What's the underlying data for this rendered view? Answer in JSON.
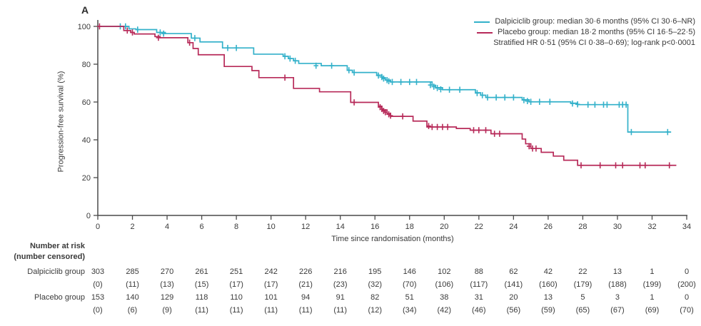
{
  "panel_label": "A",
  "colors": {
    "dalpiciclib": "#33b1ca",
    "placebo": "#b72a59",
    "axis": "#4a4a4a",
    "text": "#3a3a3a"
  },
  "legend": {
    "items": [
      {
        "label": "Dalpiciclib group: median 30·6 months (95% CI 30·6–NR)",
        "color": "#33b1ca"
      },
      {
        "label": "Placebo group: median 18·2 months (95% CI 16·5–22·5)",
        "color": "#b72a59"
      }
    ],
    "note": "Stratified HR 0·51 (95% CI 0·38–0·69); log-rank p<0·0001"
  },
  "chart_data": {
    "type": "line",
    "subtype": "kaplan_meier_step",
    "title": "",
    "xlabel": "Time since randomisation (months)",
    "ylabel": "Progression-free survival (%)",
    "xlim": [
      0,
      34
    ],
    "ylim": [
      0,
      100
    ],
    "xticks": [
      0,
      2,
      4,
      6,
      8,
      10,
      12,
      14,
      16,
      18,
      20,
      22,
      24,
      26,
      28,
      30,
      32,
      34
    ],
    "yticks": [
      0,
      20,
      40,
      60,
      80,
      100
    ],
    "grid": false,
    "legend_position": "top-right",
    "series": [
      {
        "name": "Dalpiciclib group",
        "color": "#33b1ca",
        "start": 100,
        "end_time": 33.1,
        "drops": [
          [
            1.8,
            98.7
          ],
          [
            2.2,
            98.3
          ],
          [
            3.4,
            96.8
          ],
          [
            3.9,
            96.2
          ],
          [
            5.4,
            93.8
          ],
          [
            5.9,
            91.8
          ],
          [
            7.2,
            88.6
          ],
          [
            9.0,
            85.3
          ],
          [
            10.7,
            84.2
          ],
          [
            11.0,
            83.0
          ],
          [
            11.3,
            81.8
          ],
          [
            11.6,
            80.4
          ],
          [
            12.9,
            79.2
          ],
          [
            14.4,
            76.8
          ],
          [
            14.7,
            75.6
          ],
          [
            16.1,
            74.2
          ],
          [
            16.4,
            72.9
          ],
          [
            16.6,
            71.6
          ],
          [
            16.9,
            70.6
          ],
          [
            19.3,
            68.9
          ],
          [
            19.5,
            67.6
          ],
          [
            19.9,
            66.5
          ],
          [
            21.8,
            64.9
          ],
          [
            22.1,
            63.6
          ],
          [
            22.4,
            62.4
          ],
          [
            24.5,
            61.2
          ],
          [
            24.9,
            60.1
          ],
          [
            27.3,
            59.4
          ],
          [
            27.7,
            58.6
          ],
          [
            30.6,
            44.1
          ]
        ],
        "censors": [
          [
            1.3,
            100
          ],
          [
            1.6,
            100
          ],
          [
            2.3,
            98.3
          ],
          [
            3.6,
            96.8
          ],
          [
            3.8,
            96.2
          ],
          [
            5.6,
            93.8
          ],
          [
            7.5,
            88.6
          ],
          [
            8.0,
            88.6
          ],
          [
            10.8,
            84.2
          ],
          [
            11.1,
            83.0
          ],
          [
            11.4,
            81.8
          ],
          [
            12.6,
            79.2
          ],
          [
            13.5,
            79.2
          ],
          [
            14.5,
            76.8
          ],
          [
            14.8,
            75.6
          ],
          [
            16.2,
            74.0
          ],
          [
            16.4,
            73.2
          ],
          [
            16.5,
            72.4
          ],
          [
            16.7,
            71.6
          ],
          [
            16.8,
            71.0
          ],
          [
            17.0,
            70.6
          ],
          [
            17.5,
            70.6
          ],
          [
            18.0,
            70.6
          ],
          [
            18.4,
            70.6
          ],
          [
            19.2,
            69.0
          ],
          [
            19.4,
            68.1
          ],
          [
            19.6,
            67.4
          ],
          [
            19.8,
            66.7
          ],
          [
            20.3,
            66.5
          ],
          [
            20.9,
            66.5
          ],
          [
            21.9,
            64.7
          ],
          [
            22.2,
            63.6
          ],
          [
            22.5,
            62.4
          ],
          [
            23.0,
            62.4
          ],
          [
            23.5,
            62.4
          ],
          [
            24.0,
            62.4
          ],
          [
            24.6,
            61.0
          ],
          [
            24.8,
            60.5
          ],
          [
            25.0,
            60.1
          ],
          [
            25.5,
            60.1
          ],
          [
            26.1,
            60.1
          ],
          [
            27.4,
            59.2
          ],
          [
            27.7,
            58.8
          ],
          [
            28.3,
            58.6
          ],
          [
            28.7,
            58.6
          ],
          [
            29.2,
            58.6
          ],
          [
            29.4,
            58.6
          ],
          [
            30.1,
            58.6
          ],
          [
            30.3,
            58.6
          ],
          [
            30.5,
            58.6
          ],
          [
            30.8,
            44.1
          ],
          [
            32.9,
            44.1
          ]
        ]
      },
      {
        "name": "Placebo group",
        "color": "#b72a59",
        "start": 100,
        "end_time": 33.4,
        "drops": [
          [
            1.5,
            97.8
          ],
          [
            1.9,
            96.8
          ],
          [
            2.1,
            96.0
          ],
          [
            3.3,
            94.6
          ],
          [
            3.6,
            94.0
          ],
          [
            5.2,
            91.4
          ],
          [
            5.5,
            88.3
          ],
          [
            5.8,
            85.0
          ],
          [
            7.3,
            78.8
          ],
          [
            8.9,
            76.6
          ],
          [
            9.3,
            72.9
          ],
          [
            11.3,
            67.2
          ],
          [
            12.8,
            65.4
          ],
          [
            14.6,
            59.8
          ],
          [
            16.2,
            57.8
          ],
          [
            16.4,
            55.8
          ],
          [
            16.7,
            53.9
          ],
          [
            16.9,
            52.4
          ],
          [
            18.2,
            49.9
          ],
          [
            19.0,
            46.8
          ],
          [
            20.7,
            46.0
          ],
          [
            21.5,
            45.1
          ],
          [
            22.7,
            43.2
          ],
          [
            24.5,
            40.4
          ],
          [
            24.7,
            37.9
          ],
          [
            25.0,
            35.4
          ],
          [
            25.6,
            33.4
          ],
          [
            26.3,
            31.4
          ],
          [
            26.9,
            29.2
          ],
          [
            27.7,
            26.5
          ]
        ],
        "censors": [
          [
            0.1,
            100
          ],
          [
            1.7,
            97.8
          ],
          [
            2.0,
            96.8
          ],
          [
            3.5,
            94.0
          ],
          [
            5.3,
            91.4
          ],
          [
            10.8,
            72.9
          ],
          [
            14.8,
            59.8
          ],
          [
            16.3,
            57.3
          ],
          [
            16.4,
            56.3
          ],
          [
            16.5,
            55.3
          ],
          [
            16.6,
            54.6
          ],
          [
            16.8,
            53.5
          ],
          [
            16.9,
            52.8
          ],
          [
            17.6,
            52.4
          ],
          [
            19.1,
            47.3
          ],
          [
            19.3,
            46.8
          ],
          [
            19.6,
            46.8
          ],
          [
            19.9,
            46.8
          ],
          [
            20.2,
            46.8
          ],
          [
            21.7,
            45.1
          ],
          [
            22.0,
            45.1
          ],
          [
            22.4,
            45.1
          ],
          [
            22.9,
            43.2
          ],
          [
            23.2,
            43.2
          ],
          [
            24.9,
            36.6
          ],
          [
            25.1,
            35.4
          ],
          [
            25.3,
            35.4
          ],
          [
            27.9,
            26.5
          ],
          [
            29.0,
            26.5
          ],
          [
            29.9,
            26.5
          ],
          [
            30.3,
            26.5
          ],
          [
            31.3,
            26.5
          ],
          [
            31.6,
            26.5
          ],
          [
            33.0,
            26.5
          ]
        ]
      }
    ]
  },
  "risk_table": {
    "header_line1": "Number at risk",
    "header_line2": "(number censored)",
    "time_points": [
      0,
      2,
      4,
      6,
      8,
      10,
      12,
      14,
      16,
      18,
      20,
      22,
      24,
      26,
      28,
      30,
      32,
      34
    ],
    "rows": [
      {
        "label": "Dalpiciclib group",
        "at_risk": [
          303,
          285,
          270,
          261,
          251,
          242,
          226,
          216,
          195,
          146,
          102,
          88,
          62,
          42,
          22,
          13,
          1,
          0
        ],
        "censored": [
          0,
          11,
          13,
          15,
          17,
          17,
          21,
          23,
          32,
          70,
          106,
          117,
          141,
          160,
          179,
          188,
          199,
          200
        ]
      },
      {
        "label": "Placebo group",
        "at_risk": [
          153,
          140,
          129,
          118,
          110,
          101,
          94,
          91,
          82,
          51,
          38,
          31,
          20,
          13,
          5,
          3,
          1,
          0
        ],
        "censored": [
          0,
          6,
          9,
          11,
          11,
          11,
          11,
          11,
          12,
          34,
          42,
          46,
          56,
          59,
          65,
          67,
          69,
          70
        ]
      }
    ]
  }
}
